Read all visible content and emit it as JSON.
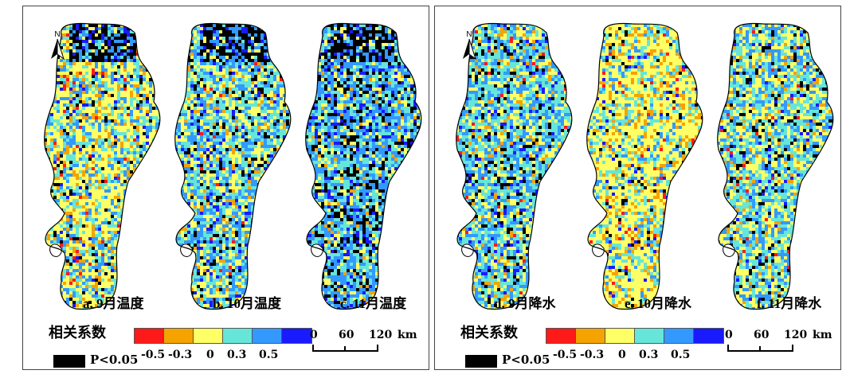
{
  "panels": [
    {
      "maps": [
        {
          "label": "a. 9月温度",
          "scheme": "temp_sep"
        },
        {
          "label": "b. 10月温度",
          "scheme": "temp_oct"
        },
        {
          "label": "c. 11月温度",
          "scheme": "temp_nov"
        }
      ]
    },
    {
      "maps": [
        {
          "label": "d. 9月降水",
          "scheme": "prec_sep"
        },
        {
          "label": "e. 10月降水",
          "scheme": "prec_oct"
        },
        {
          "label": "f. 11月降水",
          "scheme": "prec_nov"
        }
      ]
    }
  ],
  "legend": {
    "title": "相关系数",
    "colors": [
      "#ff1a1a",
      "#f5a300",
      "#ffff66",
      "#66e6d9",
      "#3399ff",
      "#1a1aff"
    ],
    "ticks": [
      "-0.5",
      "-0.3",
      "0",
      "0.3",
      "0.5"
    ],
    "significance_label": "P<0.05",
    "significance_color": "#000000"
  },
  "scale_bar": {
    "ticks": [
      "0",
      "60",
      "120"
    ],
    "unit": "km"
  },
  "north_arrow": {
    "label": "N"
  }
}
